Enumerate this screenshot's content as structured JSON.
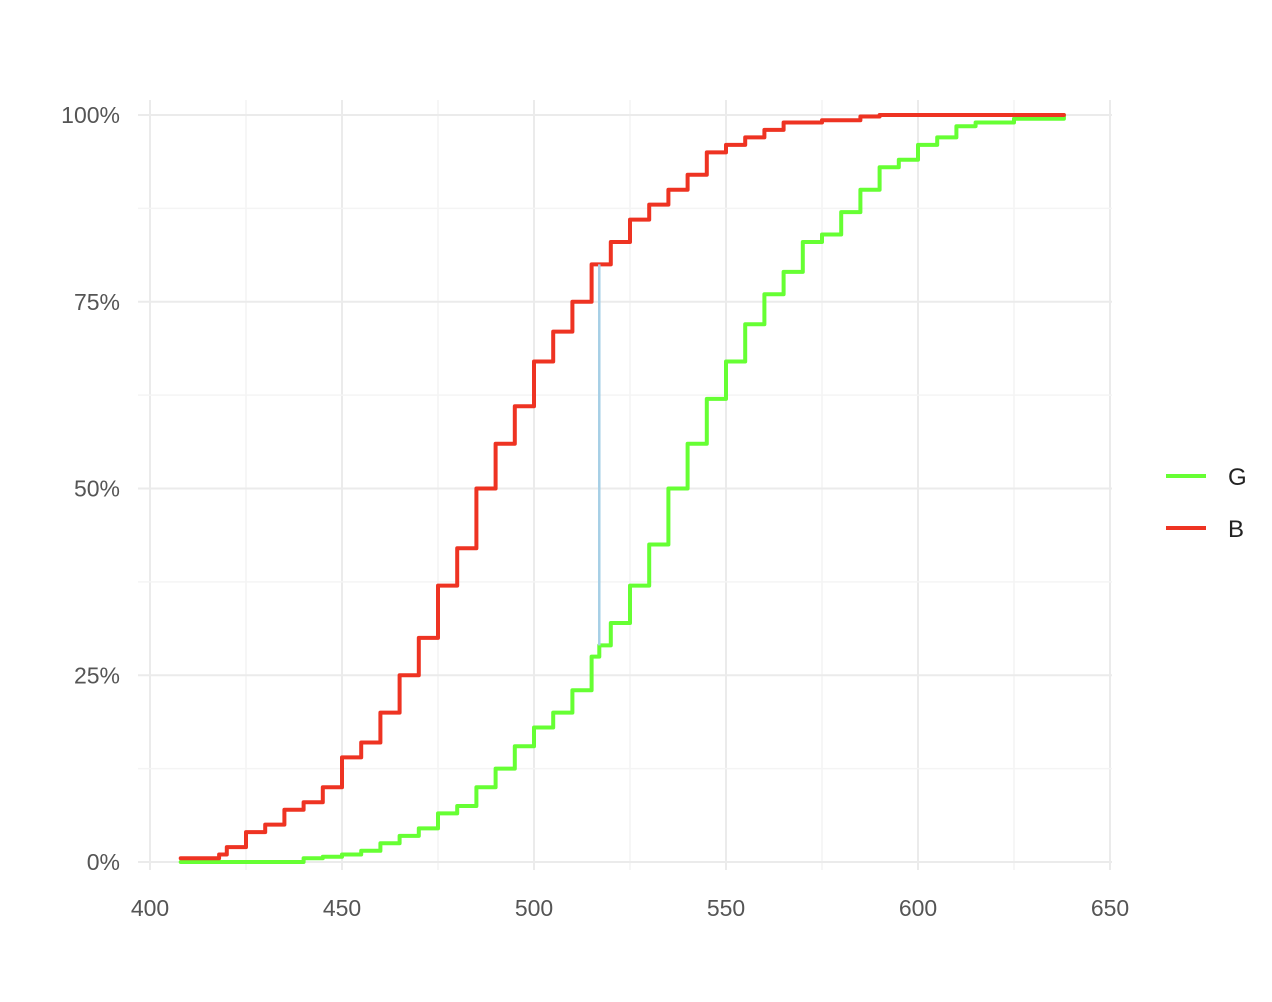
{
  "chart_data": {
    "type": "line",
    "title": "",
    "xlabel": "",
    "ylabel": "",
    "xlim": [
      400,
      650
    ],
    "ylim": [
      0,
      1
    ],
    "x_ticks": [
      400,
      450,
      500,
      550,
      600,
      650
    ],
    "x_tick_labels": [
      "400",
      "450",
      "500",
      "550",
      "600",
      "650"
    ],
    "y_ticks": [
      0,
      0.25,
      0.5,
      0.75,
      1
    ],
    "y_tick_labels": [
      "0%",
      "25%",
      "50%",
      "75%",
      "100%"
    ],
    "grid": true,
    "legend_position": "right",
    "series": [
      {
        "name": "G",
        "color": "#66ff33",
        "step": true,
        "points": [
          [
            408,
            0
          ],
          [
            430,
            0
          ],
          [
            440,
            0.005
          ],
          [
            445,
            0.007
          ],
          [
            450,
            0.01
          ],
          [
            455,
            0.015
          ],
          [
            460,
            0.025
          ],
          [
            465,
            0.035
          ],
          [
            470,
            0.045
          ],
          [
            475,
            0.065
          ],
          [
            480,
            0.075
          ],
          [
            485,
            0.1
          ],
          [
            490,
            0.125
          ],
          [
            495,
            0.155
          ],
          [
            500,
            0.18
          ],
          [
            505,
            0.2
          ],
          [
            510,
            0.23
          ],
          [
            515,
            0.275
          ],
          [
            517,
            0.29
          ],
          [
            520,
            0.32
          ],
          [
            525,
            0.37
          ],
          [
            530,
            0.425
          ],
          [
            535,
            0.5
          ],
          [
            540,
            0.56
          ],
          [
            545,
            0.62
          ],
          [
            550,
            0.67
          ],
          [
            555,
            0.72
          ],
          [
            560,
            0.76
          ],
          [
            565,
            0.79
          ],
          [
            570,
            0.83
          ],
          [
            575,
            0.84
          ],
          [
            580,
            0.87
          ],
          [
            585,
            0.9
          ],
          [
            590,
            0.93
          ],
          [
            595,
            0.94
          ],
          [
            600,
            0.96
          ],
          [
            605,
            0.97
          ],
          [
            610,
            0.985
          ],
          [
            615,
            0.99
          ],
          [
            625,
            0.995
          ],
          [
            638,
            1
          ]
        ]
      },
      {
        "name": "B",
        "color": "#ee3322",
        "step": true,
        "points": [
          [
            408,
            0.005
          ],
          [
            415,
            0.005
          ],
          [
            418,
            0.01
          ],
          [
            420,
            0.02
          ],
          [
            425,
            0.04
          ],
          [
            430,
            0.05
          ],
          [
            435,
            0.07
          ],
          [
            440,
            0.08
          ],
          [
            445,
            0.1
          ],
          [
            450,
            0.14
          ],
          [
            455,
            0.16
          ],
          [
            460,
            0.2
          ],
          [
            465,
            0.25
          ],
          [
            470,
            0.3
          ],
          [
            475,
            0.37
          ],
          [
            480,
            0.42
          ],
          [
            485,
            0.5
          ],
          [
            490,
            0.56
          ],
          [
            495,
            0.61
          ],
          [
            500,
            0.67
          ],
          [
            505,
            0.71
          ],
          [
            510,
            0.75
          ],
          [
            515,
            0.8
          ],
          [
            520,
            0.83
          ],
          [
            525,
            0.86
          ],
          [
            530,
            0.88
          ],
          [
            535,
            0.9
          ],
          [
            540,
            0.92
          ],
          [
            545,
            0.95
          ],
          [
            550,
            0.96
          ],
          [
            555,
            0.97
          ],
          [
            560,
            0.98
          ],
          [
            565,
            0.99
          ],
          [
            575,
            0.993
          ],
          [
            585,
            0.998
          ],
          [
            590,
            1
          ],
          [
            638,
            1
          ]
        ]
      }
    ],
    "annotations": [
      {
        "type": "vertical-segment",
        "x": 517,
        "y_from": 0.29,
        "y_to": 0.8,
        "color": "#a6cfe6"
      }
    ]
  }
}
